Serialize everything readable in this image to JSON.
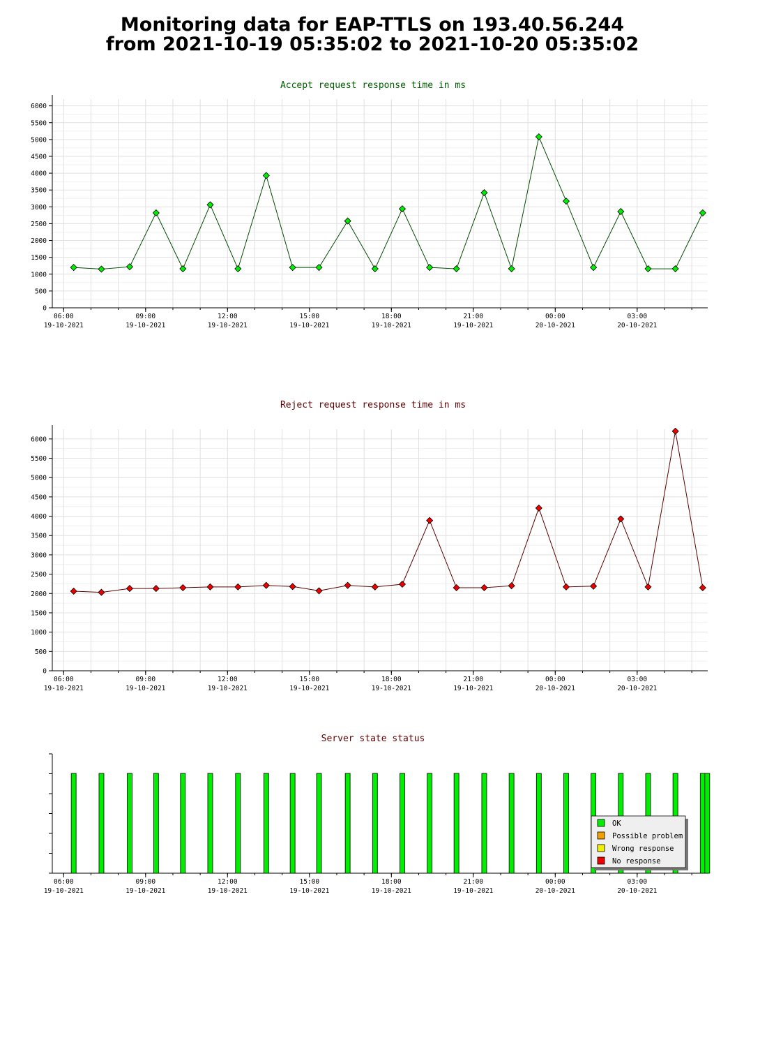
{
  "page": {
    "title_line1": "Monitoring data for EAP-TTLS on 193.40.56.244",
    "title_line2": "from 2021-10-19 05:35:02 to 2021-10-20 05:35:02"
  },
  "colors": {
    "accept_line": "#004d00",
    "accept_marker": "#00ee00",
    "reject_line": "#5a0000",
    "reject_marker": "#ee0000",
    "ok": "#00ee00",
    "possible_problem": "#f0a000",
    "wrong_response": "#f0f000",
    "no_response": "#ee0000",
    "grid": "#e0e0e0"
  },
  "x_ticks": [
    {
      "time": "06:00",
      "date": "19-10-2021"
    },
    {
      "time": "09:00",
      "date": "19-10-2021"
    },
    {
      "time": "12:00",
      "date": "19-10-2021"
    },
    {
      "time": "15:00",
      "date": "19-10-2021"
    },
    {
      "time": "18:00",
      "date": "19-10-2021"
    },
    {
      "time": "21:00",
      "date": "19-10-2021"
    },
    {
      "time": "00:00",
      "date": "20-10-2021"
    },
    {
      "time": "03:00",
      "date": "20-10-2021"
    }
  ],
  "chart_data": [
    {
      "type": "line",
      "title": "Accept request response time in ms",
      "x": [
        "2021-10-19 06:22",
        "2021-10-19 07:23",
        "2021-10-19 08:25",
        "2021-10-19 09:23",
        "2021-10-19 10:22",
        "2021-10-19 11:22",
        "2021-10-19 12:23",
        "2021-10-19 13:25",
        "2021-10-19 14:23",
        "2021-10-19 15:21",
        "2021-10-19 16:24",
        "2021-10-19 17:24",
        "2021-10-19 18:24",
        "2021-10-19 19:24",
        "2021-10-19 20:23",
        "2021-10-19 21:24",
        "2021-10-19 22:24",
        "2021-10-19 23:24",
        "2021-10-20 00:24",
        "2021-10-20 01:24",
        "2021-10-20 02:24",
        "2021-10-20 03:24",
        "2021-10-20 04:24",
        "2021-10-20 05:24"
      ],
      "values": [
        1200,
        1150,
        1220,
        2820,
        1160,
        3060,
        1160,
        3930,
        1200,
        1200,
        2580,
        1160,
        2940,
        1200,
        1160,
        3420,
        1160,
        5080,
        3170,
        1200,
        2860,
        1160,
        1160,
        2820
      ],
      "ylim": [
        0,
        6200
      ],
      "y_ticks": [
        0,
        500,
        1000,
        1500,
        2000,
        2500,
        3000,
        3500,
        4000,
        4500,
        5000,
        5500,
        6000
      ],
      "grid": true
    },
    {
      "type": "line",
      "title": "Reject request response time in ms",
      "x": [
        "2021-10-19 06:22",
        "2021-10-19 07:23",
        "2021-10-19 08:25",
        "2021-10-19 09:23",
        "2021-10-19 10:22",
        "2021-10-19 11:22",
        "2021-10-19 12:23",
        "2021-10-19 13:25",
        "2021-10-19 14:23",
        "2021-10-19 15:21",
        "2021-10-19 16:24",
        "2021-10-19 17:24",
        "2021-10-19 18:24",
        "2021-10-19 19:24",
        "2021-10-19 20:23",
        "2021-10-19 21:24",
        "2021-10-19 22:24",
        "2021-10-19 23:24",
        "2021-10-20 00:24",
        "2021-10-20 01:24",
        "2021-10-20 02:24",
        "2021-10-20 03:24",
        "2021-10-20 04:24",
        "2021-10-20 05:24"
      ],
      "values": [
        2060,
        2030,
        2130,
        2130,
        2150,
        2170,
        2170,
        2210,
        2180,
        2070,
        2210,
        2170,
        2240,
        3890,
        2150,
        2150,
        2200,
        4210,
        2170,
        2190,
        3930,
        2170,
        6200,
        2150
      ],
      "ylim": [
        0,
        6250
      ],
      "y_ticks": [
        0,
        500,
        1000,
        1500,
        2000,
        2500,
        3000,
        3500,
        4000,
        4500,
        5000,
        5500,
        6000
      ],
      "grid": true
    },
    {
      "type": "bar",
      "title": "Server state status",
      "x": [
        "2021-10-19 06:22",
        "2021-10-19 07:23",
        "2021-10-19 08:25",
        "2021-10-19 09:23",
        "2021-10-19 10:22",
        "2021-10-19 11:22",
        "2021-10-19 12:23",
        "2021-10-19 13:25",
        "2021-10-19 14:23",
        "2021-10-19 15:21",
        "2021-10-19 16:24",
        "2021-10-19 17:24",
        "2021-10-19 18:24",
        "2021-10-19 19:24",
        "2021-10-19 20:23",
        "2021-10-19 21:24",
        "2021-10-19 22:24",
        "2021-10-19 23:24",
        "2021-10-20 00:24",
        "2021-10-20 01:24",
        "2021-10-20 02:24",
        "2021-10-20 03:24",
        "2021-10-20 04:24",
        "2021-10-20 05:24",
        "2021-10-20 05:34"
      ],
      "status": [
        "OK",
        "OK",
        "OK",
        "OK",
        "OK",
        "OK",
        "OK",
        "OK",
        "OK",
        "OK",
        "OK",
        "OK",
        "OK",
        "OK",
        "OK",
        "OK",
        "OK",
        "OK",
        "OK",
        "OK",
        "OK",
        "OK",
        "OK",
        "OK",
        "OK"
      ],
      "legend": [
        "OK",
        "Possible problem",
        "Wrong response",
        "No response"
      ],
      "legend_position": "bottom-right"
    }
  ]
}
